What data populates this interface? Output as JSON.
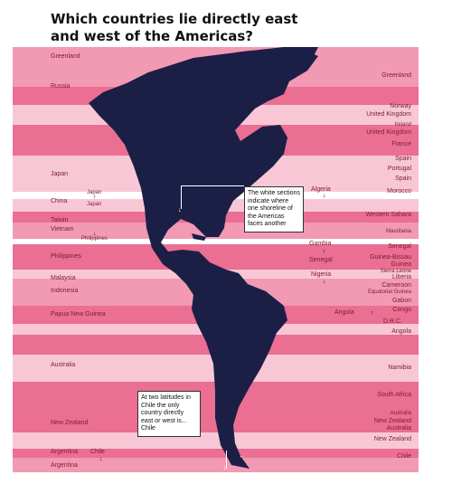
{
  "title": "Which countries lie directly east and west of the Americas?",
  "colors": {
    "band_dark": "#eb6e93",
    "band_mid": "#f299b4",
    "band_light": "#f8c7d6",
    "band_white": "#ffffff",
    "land": "#1b1f45",
    "label_text": "#7a1d33",
    "title_text": "#111111"
  },
  "west_labels": [
    "Greenland",
    "Russia",
    "Japan",
    "Japan",
    "China",
    "Japan",
    "Taiwin",
    "Vietnam",
    "Philippines",
    "Philippines",
    "Malaysia",
    "Indonesia",
    "Papua New Guinea",
    "Australia",
    "New Zealand",
    "Argentina",
    "Chile",
    "Argentina"
  ],
  "east_labels": [
    "Greenland",
    "Norway",
    "United Kingdom",
    "Ireland",
    "United Kingdom",
    "France",
    "Spain",
    "Portugal",
    "Spain",
    "Morocco",
    "Algeria",
    "Western Sahara",
    "Mauritania",
    "Gambia",
    "Senegal",
    "Senegal",
    "Guinea-Bissau",
    "Guinea",
    "Sierra Leone",
    "Liberia",
    "Nigeria",
    "Cameroon",
    "Equatorial Guinea",
    "Gabon",
    "Congo",
    "Angola",
    "D.R.C.",
    "Angola",
    "Namibia",
    "South Africa",
    "Australia",
    "New Zealand",
    "Australia",
    "New Zealand",
    "Chile"
  ],
  "notes": {
    "white_sections": "The white sections indicate where one shoreline of the Americas faces another",
    "chile": "At two latitudes in Chile the only country directly east or west is... Chile"
  }
}
